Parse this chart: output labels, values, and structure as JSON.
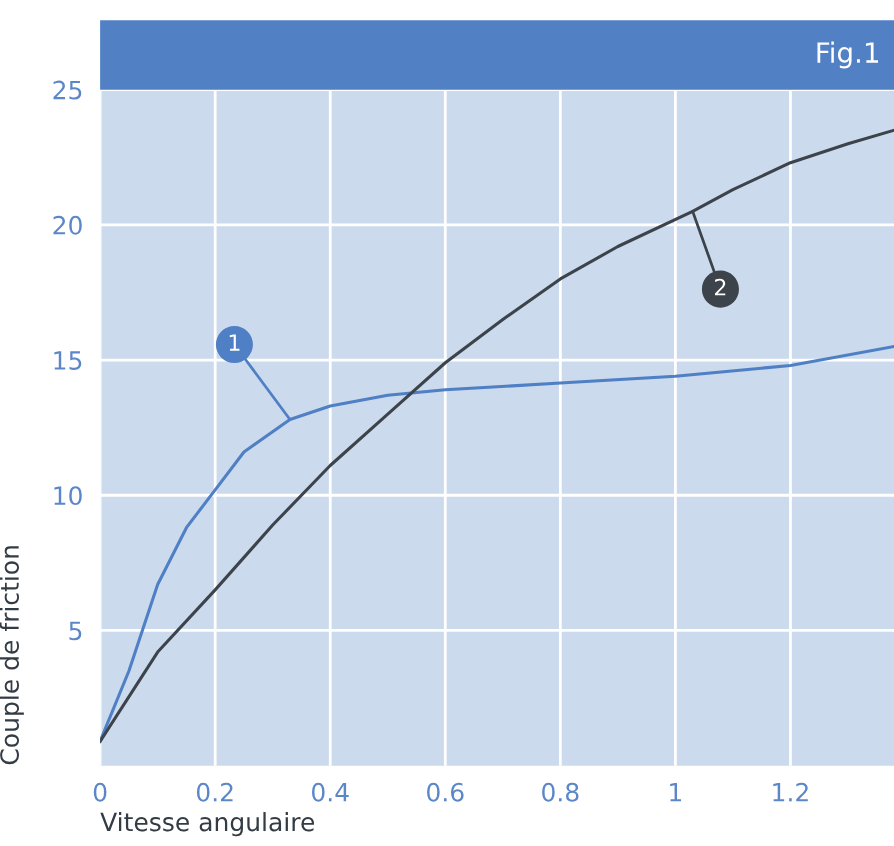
{
  "chart_data": {
    "type": "line",
    "title": "Fig.1",
    "xlabel": "Vitesse angulaire",
    "ylabel": "Couple de friction",
    "xlim": [
      0,
      1.38
    ],
    "xticks": [
      0,
      0.2,
      0.4,
      0.6,
      0.8,
      1,
      1.2
    ],
    "ylim": [
      0,
      25
    ],
    "yticks": [
      5,
      10,
      15,
      20,
      25
    ],
    "grid": true,
    "legend": false,
    "marker": "none",
    "line_style": "solid",
    "series": [
      {
        "name": "1",
        "color": "#4f7fc4",
        "x": [
          0,
          0.05,
          0.1,
          0.15,
          0.2,
          0.25,
          0.33,
          0.4,
          0.5,
          0.6,
          0.8,
          1.0,
          1.2,
          1.38
        ],
        "values": [
          0.9,
          3.5,
          6.7,
          8.8,
          10.2,
          11.6,
          12.8,
          13.3,
          13.7,
          13.9,
          14.15,
          14.4,
          14.8,
          15.5
        ]
      },
      {
        "name": "2",
        "color": "#3d434b",
        "x": [
          0,
          0.1,
          0.2,
          0.3,
          0.4,
          0.5,
          0.6,
          0.7,
          0.8,
          0.9,
          1.03,
          1.1,
          1.2,
          1.3,
          1.38
        ],
        "values": [
          0.9,
          4.2,
          6.5,
          8.9,
          11.1,
          13.0,
          14.9,
          16.5,
          18.0,
          19.2,
          20.5,
          21.3,
          22.3,
          23.0,
          23.5
        ]
      }
    ]
  }
}
